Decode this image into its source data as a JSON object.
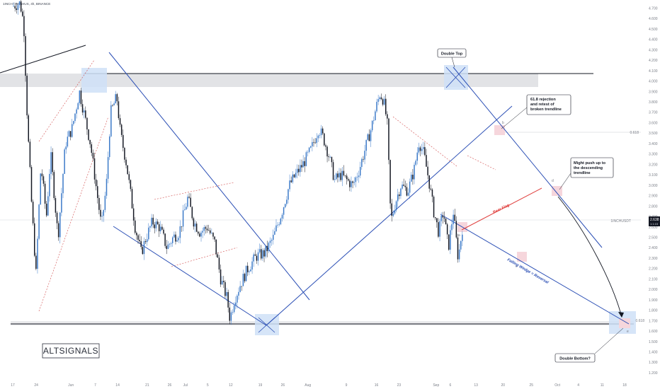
{
  "chart_data": {
    "type": "candlestick",
    "header": "1INCH / TetherUS, 4h, BINANCE",
    "y_axis": {
      "min": 1.1,
      "max": 4.8,
      "step": 0.1,
      "ticks": [
        "4.700",
        "4.600",
        "4.500",
        "4.400",
        "4.300",
        "4.200",
        "4.100",
        "4.000",
        "3.900",
        "3.800",
        "3.700",
        "3.600",
        "3.500",
        "3.400",
        "3.300",
        "3.200",
        "3.100",
        "3.000",
        "2.900",
        "2.800",
        "2.700",
        "2.600",
        "2.500",
        "2.400",
        "2.300",
        "2.200",
        "2.100",
        "2.000",
        "1.900",
        "1.800",
        "1.700",
        "1.600",
        "1.500",
        "1.400",
        "1.300",
        "1.200"
      ]
    },
    "x_axis": {
      "ticks": [
        {
          "label": "17",
          "pos": 0.0
        },
        {
          "label": "24",
          "pos": 0.0384
        },
        {
          "label": "Jun",
          "pos": 0.0951
        },
        {
          "label": "7",
          "pos": 0.1348
        },
        {
          "label": "14",
          "pos": 0.1714
        },
        {
          "label": "21",
          "pos": 0.2198
        },
        {
          "label": "26",
          "pos": 0.2564
        },
        {
          "label": "Jul",
          "pos": 0.2822
        },
        {
          "label": "5",
          "pos": 0.3186
        },
        {
          "label": "12",
          "pos": 0.3564
        },
        {
          "label": "19",
          "pos": 0.4045
        },
        {
          "label": "26",
          "pos": 0.4414
        },
        {
          "label": "Aug",
          "pos": 0.4823
        },
        {
          "label": "9",
          "pos": 0.5452
        },
        {
          "label": "16",
          "pos": 0.5943
        },
        {
          "label": "23",
          "pos": 0.6313
        },
        {
          "label": "Sep",
          "pos": 0.6919
        },
        {
          "label": "6",
          "pos": 0.7151
        },
        {
          "label": "13",
          "pos": 0.7571
        },
        {
          "label": "20",
          "pos": 0.8012
        },
        {
          "label": "25",
          "pos": 0.8475
        },
        {
          "label": "Oct",
          "pos": 0.8902
        },
        {
          "label": "4",
          "pos": 0.9244
        },
        {
          "label": "11",
          "pos": 0.9634
        },
        {
          "label": "18",
          "pos": 1.0
        }
      ]
    },
    "current_price": "2.638",
    "current_price_sub": "1:1:15",
    "pair_label": "1INCHUSDT",
    "fib_618_label": "0.618",
    "fib_1_label": "0.618",
    "price_path": [
      {
        "t": 0.0,
        "p": 4.72
      },
      {
        "t": 0.012,
        "p": 4.75
      },
      {
        "t": 0.018,
        "p": 4.55
      },
      {
        "t": 0.024,
        "p": 3.6
      },
      {
        "t": 0.031,
        "p": 2.8
      },
      {
        "t": 0.038,
        "p": 2.15
      },
      {
        "t": 0.046,
        "p": 3.2
      },
      {
        "t": 0.055,
        "p": 2.7
      },
      {
        "t": 0.062,
        "p": 3.3
      },
      {
        "t": 0.074,
        "p": 2.5
      },
      {
        "t": 0.086,
        "p": 3.4
      },
      {
        "t": 0.097,
        "p": 3.55
      },
      {
        "t": 0.109,
        "p": 3.9
      },
      {
        "t": 0.118,
        "p": 3.65
      },
      {
        "t": 0.127,
        "p": 3.4
      },
      {
        "t": 0.136,
        "p": 3.0
      },
      {
        "t": 0.145,
        "p": 2.6
      },
      {
        "t": 0.153,
        "p": 3.0
      },
      {
        "t": 0.16,
        "p": 3.7
      },
      {
        "t": 0.17,
        "p": 3.85
      },
      {
        "t": 0.176,
        "p": 3.5
      },
      {
        "t": 0.186,
        "p": 3.2
      },
      {
        "t": 0.2,
        "p": 2.6
      },
      {
        "t": 0.21,
        "p": 2.35
      },
      {
        "t": 0.218,
        "p": 2.5
      },
      {
        "t": 0.228,
        "p": 2.65
      },
      {
        "t": 0.24,
        "p": 2.6
      },
      {
        "t": 0.252,
        "p": 2.4
      },
      {
        "t": 0.262,
        "p": 2.5
      },
      {
        "t": 0.272,
        "p": 2.55
      },
      {
        "t": 0.286,
        "p": 2.88
      },
      {
        "t": 0.296,
        "p": 2.65
      },
      {
        "t": 0.306,
        "p": 2.55
      },
      {
        "t": 0.318,
        "p": 2.6
      },
      {
        "t": 0.33,
        "p": 2.45
      },
      {
        "t": 0.34,
        "p": 2.1
      },
      {
        "t": 0.35,
        "p": 1.92
      },
      {
        "t": 0.355,
        "p": 1.72
      },
      {
        "t": 0.362,
        "p": 1.9
      },
      {
        "t": 0.372,
        "p": 2.05
      },
      {
        "t": 0.384,
        "p": 2.2
      },
      {
        "t": 0.398,
        "p": 2.32
      },
      {
        "t": 0.412,
        "p": 2.35
      },
      {
        "t": 0.426,
        "p": 2.5
      },
      {
        "t": 0.44,
        "p": 2.75
      },
      {
        "t": 0.452,
        "p": 3.0
      },
      {
        "t": 0.462,
        "p": 3.1
      },
      {
        "t": 0.474,
        "p": 3.2
      },
      {
        "t": 0.488,
        "p": 3.35
      },
      {
        "t": 0.5,
        "p": 3.55
      },
      {
        "t": 0.508,
        "p": 3.45
      },
      {
        "t": 0.516,
        "p": 3.3
      },
      {
        "t": 0.526,
        "p": 3.05
      },
      {
        "t": 0.536,
        "p": 3.1
      },
      {
        "t": 0.546,
        "p": 3.05
      },
      {
        "t": 0.556,
        "p": 3.0
      },
      {
        "t": 0.566,
        "p": 3.15
      },
      {
        "t": 0.576,
        "p": 3.35
      },
      {
        "t": 0.586,
        "p": 3.55
      },
      {
        "t": 0.594,
        "p": 3.75
      },
      {
        "t": 0.6,
        "p": 3.88
      },
      {
        "t": 0.606,
        "p": 3.82
      },
      {
        "t": 0.612,
        "p": 3.6
      },
      {
        "t": 0.618,
        "p": 2.65
      },
      {
        "t": 0.626,
        "p": 2.85
      },
      {
        "t": 0.634,
        "p": 3.0
      },
      {
        "t": 0.646,
        "p": 2.95
      },
      {
        "t": 0.656,
        "p": 3.15
      },
      {
        "t": 0.664,
        "p": 3.42
      },
      {
        "t": 0.672,
        "p": 3.3
      },
      {
        "t": 0.68,
        "p": 3.05
      },
      {
        "t": 0.688,
        "p": 2.75
      },
      {
        "t": 0.696,
        "p": 2.55
      },
      {
        "t": 0.704,
        "p": 2.75
      },
      {
        "t": 0.712,
        "p": 2.4
      },
      {
        "t": 0.72,
        "p": 2.75
      },
      {
        "t": 0.728,
        "p": 2.3
      },
      {
        "t": 0.736,
        "p": 2.638
      }
    ]
  },
  "annotations": {
    "double_top": "Double Top",
    "rejection": [
      "61.8 rejection",
      "and retest of",
      "broken trendline"
    ],
    "might_push": [
      "Might push up to",
      "the descending",
      "trendline"
    ],
    "double_bottom": "Double Bottom?",
    "falling_wedge": "Falling Wedge = Reversal",
    "bear_flag": "Bear Flag",
    "point_a": "a",
    "point_b": "b",
    "point_c": "c",
    "point_d": "d",
    "point_e": "e"
  },
  "brand": "ALTSIGNALS",
  "colors": {
    "up_candle": "#3a79c8",
    "down_candle": "#131722",
    "trend_blue": "#2b4fb5",
    "bear_flag_red": "#e0413f",
    "highlight_blue": "#cfe0f7",
    "highlight_pink": "#f6d6dc",
    "zone_gray": "#e2e3e6"
  }
}
